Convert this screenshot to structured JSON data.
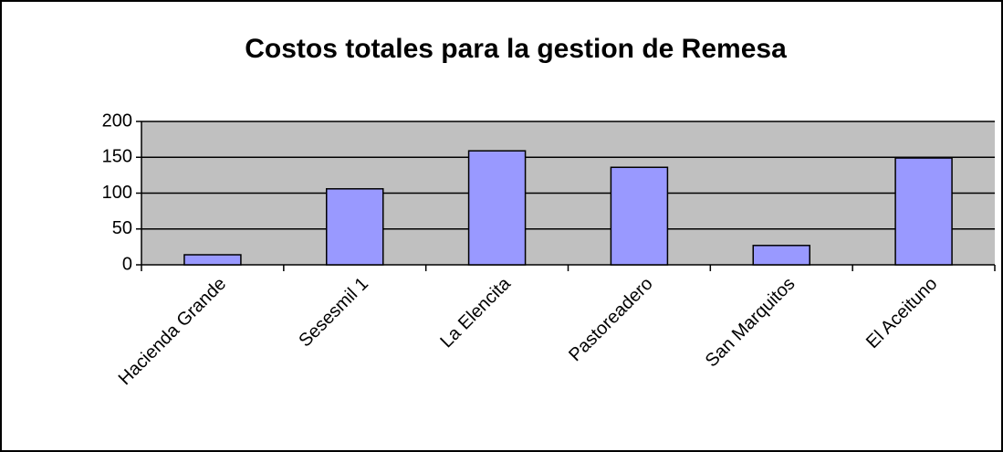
{
  "chart_data": {
    "type": "bar",
    "title": "Costos totales para la gestion  de Remesa",
    "categories": [
      "Hacienda Grande",
      "Sesesmil 1",
      "La Elencita",
      "Pastoreadero",
      "San Marquitos",
      "El Aceituno"
    ],
    "values": [
      14,
      106,
      159,
      136,
      27,
      149
    ],
    "color": "#9999ff",
    "ylim": [
      0,
      200
    ],
    "yticks": [
      0,
      50,
      100,
      150,
      200
    ],
    "grid": true
  }
}
